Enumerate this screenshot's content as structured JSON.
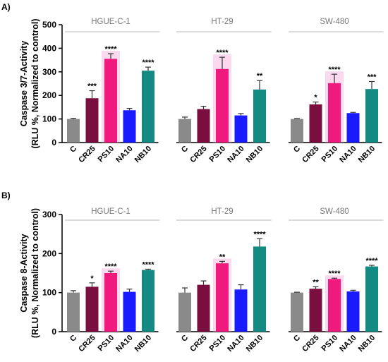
{
  "chart_data": [
    {
      "panel": "A)",
      "type": "bar",
      "ylabel_line1": "Caspase 3/7-Activity",
      "ylabel_line2": "(RLU %, Normalized to control)",
      "ylim": [
        0,
        500
      ],
      "yticks": [
        "0",
        "100",
        "200",
        "300",
        "400",
        "500"
      ],
      "grid": false,
      "categories": [
        "C",
        "CR25",
        "PS10",
        "NA10",
        "NB10"
      ],
      "groups": [
        {
          "name": "HGUE-C-1",
          "values": [
            100,
            188,
            355,
            137,
            305
          ],
          "errors": [
            3,
            32,
            22,
            8,
            15
          ],
          "significance": [
            "",
            "***",
            "****",
            "",
            "****"
          ]
        },
        {
          "name": "HT-29",
          "values": [
            100,
            142,
            312,
            115,
            225
          ],
          "errors": [
            8,
            12,
            50,
            8,
            38
          ],
          "significance": [
            "",
            "",
            "****",
            "",
            "**"
          ]
        },
        {
          "name": "SW-480",
          "values": [
            100,
            162,
            252,
            125,
            227
          ],
          "errors": [
            2,
            10,
            38,
            3,
            32
          ],
          "significance": [
            "",
            "*",
            "****",
            "",
            "***"
          ]
        }
      ]
    },
    {
      "panel": "B)",
      "type": "bar",
      "ylabel_line1": "Caspase 8-Activity",
      "ylabel_line2": "(RLU %, Normalized to control)",
      "ylim": [
        0,
        300
      ],
      "yticks": [
        "0",
        "100",
        "200",
        "300"
      ],
      "grid": false,
      "categories": [
        "C",
        "CR25",
        "PS10",
        "NA10",
        "NB10"
      ],
      "groups": [
        {
          "name": "HGUE-C-1",
          "values": [
            100,
            115,
            150,
            102,
            158
          ],
          "errors": [
            5,
            10,
            5,
            7,
            2
          ],
          "significance": [
            "",
            "*",
            "****",
            "",
            "****"
          ]
        },
        {
          "name": "HT-29",
          "values": [
            100,
            120,
            175,
            108,
            218
          ],
          "errors": [
            12,
            10,
            5,
            12,
            20
          ],
          "significance": [
            "",
            "",
            "**",
            "",
            "****"
          ]
        },
        {
          "name": "SW-480",
          "values": [
            100,
            110,
            135,
            103,
            167
          ],
          "errors": [
            1,
            5,
            2,
            3,
            3
          ],
          "significance": [
            "",
            "**",
            "****",
            "",
            "****"
          ]
        }
      ]
    }
  ],
  "colors": {
    "C": "#8a8a8a",
    "CR25": "#7a0f3f",
    "PS10": "#f0197d",
    "NA10": "#1a1aff",
    "NB10": "#138a82",
    "group_title": "#7a7a7a",
    "group_rule": "#b8b8b8",
    "highlight": "#f4a9d6"
  }
}
